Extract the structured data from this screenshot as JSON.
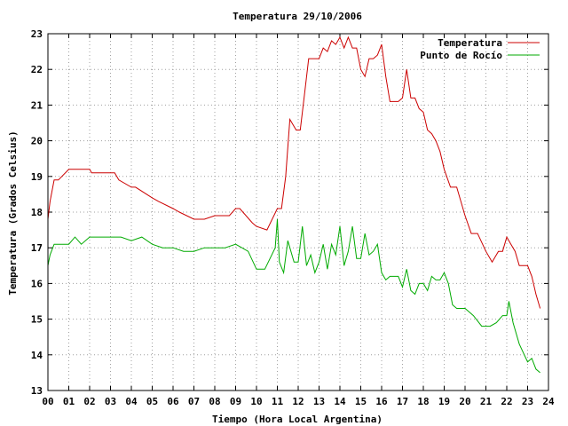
{
  "chart_data": {
    "type": "line",
    "title": "Temperatura 29/10/2006",
    "xlabel": "Tiempo (Hora Local Argentina)",
    "ylabel": "Temperatura (Grados Celsius)",
    "xlim": [
      0,
      24
    ],
    "ylim": [
      13,
      23
    ],
    "x_ticks": [
      "00",
      "01",
      "02",
      "03",
      "04",
      "05",
      "06",
      "07",
      "08",
      "09",
      "10",
      "11",
      "12",
      "13",
      "14",
      "15",
      "16",
      "17",
      "18",
      "19",
      "20",
      "21",
      "22",
      "23",
      "24"
    ],
    "y_ticks": [
      13,
      14,
      15,
      16,
      17,
      18,
      19,
      20,
      21,
      22,
      23
    ],
    "grid": true,
    "legend_position": "top-right",
    "series": [
      {
        "name": "Temperatura",
        "color": "#cc0000",
        "x": [
          0,
          0.1,
          0.3,
          0.5,
          1.0,
          1.2,
          2.0,
          2.1,
          3.2,
          3.4,
          4.0,
          4.2,
          5.0,
          5.3,
          6.0,
          6.3,
          7.0,
          7.5,
          8.0,
          8.3,
          8.7,
          9.0,
          9.2,
          9.8,
          10.0,
          10.5,
          11.0,
          11.2,
          11.4,
          11.6,
          11.9,
          12.1,
          12.3,
          12.5,
          13.0,
          13.2,
          13.4,
          13.6,
          13.8,
          14.0,
          14.2,
          14.4,
          14.6,
          14.8,
          15.0,
          15.2,
          15.4,
          15.6,
          15.8,
          16.0,
          16.2,
          16.4,
          16.6,
          16.8,
          17.0,
          17.2,
          17.4,
          17.6,
          17.8,
          18.0,
          18.2,
          18.4,
          18.6,
          18.8,
          19.0,
          19.3,
          19.6,
          20.0,
          20.3,
          20.6,
          21.0,
          21.3,
          21.6,
          21.8,
          22.0,
          22.2,
          22.4,
          22.6,
          23.0,
          23.2,
          23.4,
          23.6
        ],
        "y": [
          17.8,
          18.3,
          18.9,
          18.9,
          19.2,
          19.2,
          19.2,
          19.1,
          19.1,
          18.9,
          18.7,
          18.7,
          18.4,
          18.3,
          18.1,
          18.0,
          17.8,
          17.8,
          17.9,
          17.9,
          17.9,
          18.1,
          18.1,
          17.7,
          17.6,
          17.5,
          18.1,
          18.1,
          19.0,
          20.6,
          20.3,
          20.3,
          21.3,
          22.3,
          22.3,
          22.6,
          22.5,
          22.8,
          22.7,
          22.9,
          22.6,
          22.9,
          22.6,
          22.6,
          22.0,
          21.8,
          22.3,
          22.3,
          22.4,
          22.7,
          21.8,
          21.1,
          21.1,
          21.1,
          21.2,
          22.0,
          21.2,
          21.2,
          20.9,
          20.8,
          20.3,
          20.2,
          20.0,
          19.7,
          19.2,
          18.7,
          18.7,
          17.9,
          17.4,
          17.4,
          16.9,
          16.6,
          16.9,
          16.9,
          17.3,
          17.1,
          16.9,
          16.5,
          16.5,
          16.2,
          15.7,
          15.3
        ]
      },
      {
        "name": "Punto de Rocío",
        "color": "#00aa00",
        "x": [
          0,
          0.1,
          0.3,
          0.5,
          1.0,
          1.3,
          1.6,
          2.0,
          2.5,
          3.0,
          3.5,
          4.0,
          4.5,
          5.0,
          5.5,
          6.0,
          6.5,
          7.0,
          7.5,
          8.0,
          8.5,
          9.0,
          9.3,
          9.6,
          10.0,
          10.4,
          10.9,
          11.0,
          11.1,
          11.3,
          11.5,
          11.8,
          12.0,
          12.2,
          12.4,
          12.6,
          12.8,
          13.0,
          13.2,
          13.4,
          13.6,
          13.8,
          14.0,
          14.2,
          14.4,
          14.6,
          14.8,
          15.0,
          15.2,
          15.4,
          15.6,
          15.8,
          16.0,
          16.2,
          16.4,
          16.6,
          16.8,
          17.0,
          17.2,
          17.4,
          17.6,
          17.8,
          18.0,
          18.2,
          18.4,
          18.6,
          18.8,
          19.0,
          19.2,
          19.4,
          19.6,
          20.0,
          20.4,
          20.8,
          21.2,
          21.5,
          21.8,
          22.0,
          22.1,
          22.3,
          22.6,
          23.0,
          23.2,
          23.4,
          23.6
        ],
        "y": [
          16.5,
          16.8,
          17.1,
          17.1,
          17.1,
          17.3,
          17.1,
          17.3,
          17.3,
          17.3,
          17.3,
          17.2,
          17.3,
          17.1,
          17.0,
          17.0,
          16.9,
          16.9,
          17.0,
          17.0,
          17.0,
          17.1,
          17.0,
          16.9,
          16.4,
          16.4,
          17.0,
          17.8,
          16.6,
          16.3,
          17.2,
          16.6,
          16.6,
          17.6,
          16.5,
          16.8,
          16.3,
          16.6,
          17.1,
          16.4,
          17.1,
          16.8,
          17.6,
          16.5,
          16.9,
          17.6,
          16.7,
          16.7,
          17.4,
          16.8,
          16.9,
          17.1,
          16.3,
          16.1,
          16.2,
          16.2,
          16.2,
          15.9,
          16.4,
          15.8,
          15.7,
          16.0,
          16.0,
          15.8,
          16.2,
          16.1,
          16.1,
          16.3,
          16.0,
          15.4,
          15.3,
          15.3,
          15.1,
          14.8,
          14.8,
          14.9,
          15.1,
          15.1,
          15.5,
          14.9,
          14.3,
          13.8,
          13.9,
          13.6,
          13.5
        ]
      }
    ]
  }
}
